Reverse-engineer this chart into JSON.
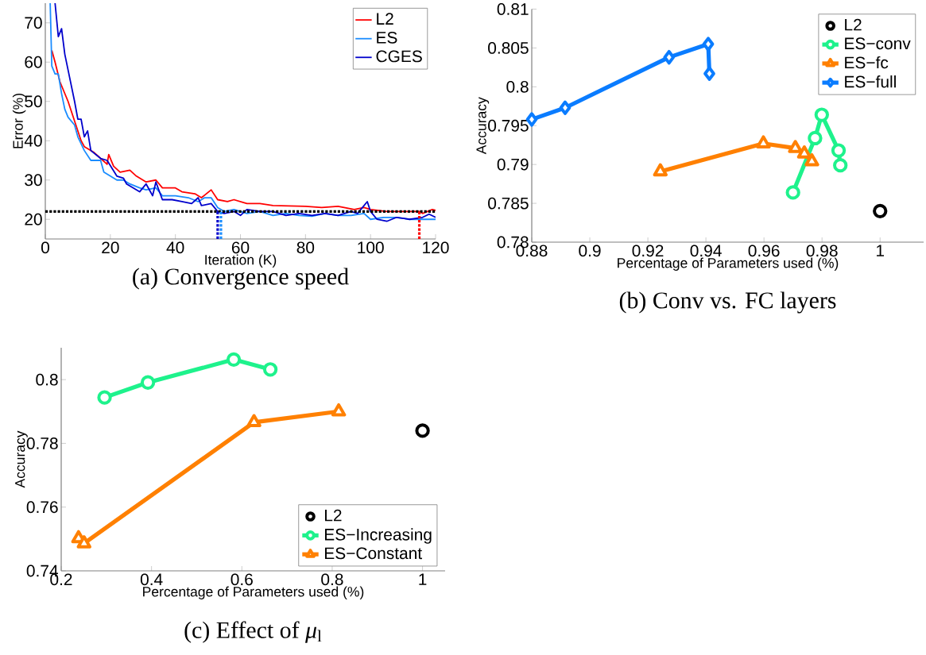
{
  "chart_data": [
    {
      "type": "line",
      "title": "(a) Convergence speed",
      "xlabel": "Iteration (K)",
      "ylabel": "Error (%)",
      "xlim": [
        0,
        120
      ],
      "ylim": [
        15,
        75
      ],
      "xticks": [
        0,
        20,
        40,
        60,
        80,
        100,
        120
      ],
      "yticks": [
        20,
        30,
        40,
        50,
        60,
        70
      ],
      "legend": "top right",
      "marker": "none",
      "series": [
        {
          "name": "L2",
          "color": "#ff0000",
          "x": [
            2,
            3,
            4.5,
            7,
            9,
            11,
            12,
            15,
            17,
            19,
            19.5,
            21,
            23,
            26,
            28,
            30,
            31,
            34,
            36,
            40,
            42,
            46,
            48,
            51,
            53,
            56,
            58,
            62,
            66,
            70,
            80,
            85,
            90,
            95,
            98,
            100,
            105,
            110,
            115,
            116,
            119,
            120
          ],
          "values": [
            63,
            60,
            55,
            50,
            45,
            40,
            38.5,
            37,
            35.5,
            34,
            36.5,
            33.5,
            32,
            32.5,
            31,
            30,
            29.5,
            30,
            28,
            28,
            27,
            26.5,
            25.5,
            27.5,
            25,
            24.5,
            25,
            24,
            24,
            23.5,
            23.3,
            23,
            23.3,
            22.5,
            23,
            22.5,
            22,
            22,
            22,
            21.5,
            22.5,
            22.3
          ]
        },
        {
          "name": "ES",
          "color": "#1a8cff",
          "x": [
            1.5,
            2,
            3,
            4,
            5,
            6,
            7,
            9,
            10,
            12,
            14,
            17,
            18,
            20,
            22,
            24,
            26,
            29,
            31,
            34,
            36,
            40,
            44,
            47,
            49,
            51,
            53,
            55,
            58,
            62,
            66,
            70,
            74,
            78,
            82,
            86,
            90,
            94,
            98,
            100,
            104,
            108,
            112,
            116,
            120
          ],
          "values": [
            75,
            59,
            57,
            57,
            52,
            48,
            46,
            44,
            41,
            37.5,
            35,
            35,
            32,
            31,
            30,
            30,
            29,
            28,
            27.5,
            28,
            26,
            26,
            25.5,
            24.5,
            25.5,
            25.5,
            23,
            22,
            22.5,
            21.5,
            22,
            21,
            21.5,
            21,
            20.8,
            21.5,
            21,
            21,
            21.5,
            20,
            20.5,
            20.5,
            20,
            20,
            20
          ]
        },
        {
          "name": "CGES",
          "color": "#0000cc",
          "x": [
            3,
            4,
            5,
            6,
            7,
            9,
            10,
            11,
            12,
            13,
            14,
            17,
            19,
            22,
            24,
            25,
            29,
            31,
            33,
            34,
            36,
            39,
            42,
            45,
            47,
            48,
            51,
            53,
            55,
            58,
            60,
            62,
            66,
            70,
            74,
            78,
            82,
            86,
            90,
            94,
            96,
            99,
            100,
            102,
            105,
            108,
            112,
            116,
            118,
            120
          ],
          "values": [
            75,
            66.5,
            68.5,
            62,
            58,
            50,
            45.5,
            45.5,
            41,
            42.5,
            37.5,
            35.5,
            35,
            31,
            30.5,
            29,
            27,
            29,
            26,
            29.5,
            25,
            25,
            24.5,
            24,
            25.5,
            23.5,
            24,
            22,
            21.5,
            22,
            21,
            22.5,
            22,
            22,
            21,
            21.5,
            21,
            21.5,
            21,
            22,
            21.5,
            24.5,
            22,
            20,
            19.5,
            20.5,
            20,
            20.5,
            21.3,
            20.5
          ]
        }
      ],
      "ref_lines": [
        {
          "axis": "y",
          "value": 22,
          "color": "#000000",
          "line_style": "dotted"
        },
        {
          "axis": "x",
          "value": 53,
          "color": "#0000cc",
          "line_style": "dotted"
        },
        {
          "axis": "x",
          "value": 54,
          "color": "#1a8cff",
          "line_style": "dotted"
        },
        {
          "axis": "x",
          "value": 115,
          "color": "#ff0000",
          "line_style": "dotted"
        }
      ]
    },
    {
      "type": "line",
      "title": "(b) Conv vs. FC layers",
      "xlabel": "Percentage of Parameters used (%)",
      "ylabel": "Accuracy",
      "xlim": [
        0.88,
        1.015
      ],
      "ylim": [
        0.78,
        0.81
      ],
      "xticks": [
        0.88,
        0.9,
        0.92,
        0.94,
        0.96,
        0.98,
        1
      ],
      "yticks": [
        0.78,
        0.785,
        0.79,
        0.795,
        0.8,
        0.805,
        0.81
      ],
      "legend": "top right",
      "series": [
        {
          "name": "L2",
          "type": "scatter",
          "marker": "circle",
          "color": "#000000",
          "x": [
            1
          ],
          "values": [
            0.784
          ]
        },
        {
          "name": "ES−conv",
          "marker": "circle",
          "color": "#1ef28c",
          "x": [
            0.97,
            0.9776,
            0.9799,
            0.9857,
            0.9863
          ],
          "values": [
            0.7864,
            0.7934,
            0.7964,
            0.7918,
            0.7899
          ]
        },
        {
          "name": "ES−fc",
          "marker": "triangle",
          "color": "#ff8000",
          "x": [
            0.9243,
            0.9598,
            0.9708,
            0.9739,
            0.9765
          ],
          "values": [
            0.7891,
            0.7927,
            0.7921,
            0.7914,
            0.7904
          ]
        },
        {
          "name": "ES−full",
          "marker": "diamond",
          "color": "#0a7cff",
          "x": [
            0.88,
            0.8915,
            0.9273,
            0.9408,
            0.9412
          ],
          "values": [
            0.7958,
            0.7973,
            0.8038,
            0.8055,
            0.8017
          ]
        }
      ]
    },
    {
      "type": "line",
      "title": "(c) Effect of *μ*$_{l}$",
      "xlabel": "Percentage of Parameters used (%)",
      "ylabel": "Accuracy",
      "xlim": [
        0.2,
        1.05
      ],
      "ylim": [
        0.74,
        0.81
      ],
      "xticks": [
        0.2,
        0.4,
        0.6,
        0.8,
        1
      ],
      "yticks": [
        0.74,
        0.76,
        0.78,
        0.8
      ],
      "legend": "bottom right",
      "series": [
        {
          "name": "L2",
          "type": "scatter",
          "marker": "circle",
          "color": "#000000",
          "x": [
            1
          ],
          "values": [
            0.784
          ]
        },
        {
          "name": "ES−Increasing",
          "marker": "circle",
          "color": "#1ef28c",
          "x": [
            0.296,
            0.392,
            0.582,
            0.663
          ],
          "values": [
            0.7944,
            0.7991,
            0.8063,
            0.8032
          ]
        },
        {
          "name": "ES−Constant",
          "marker": "triangle",
          "color": "#ff8000",
          "x": [
            0.2384,
            0.2506,
            0.6269,
            0.8144
          ],
          "values": [
            0.7502,
            0.7486,
            0.7866,
            0.79
          ]
        }
      ]
    }
  ]
}
